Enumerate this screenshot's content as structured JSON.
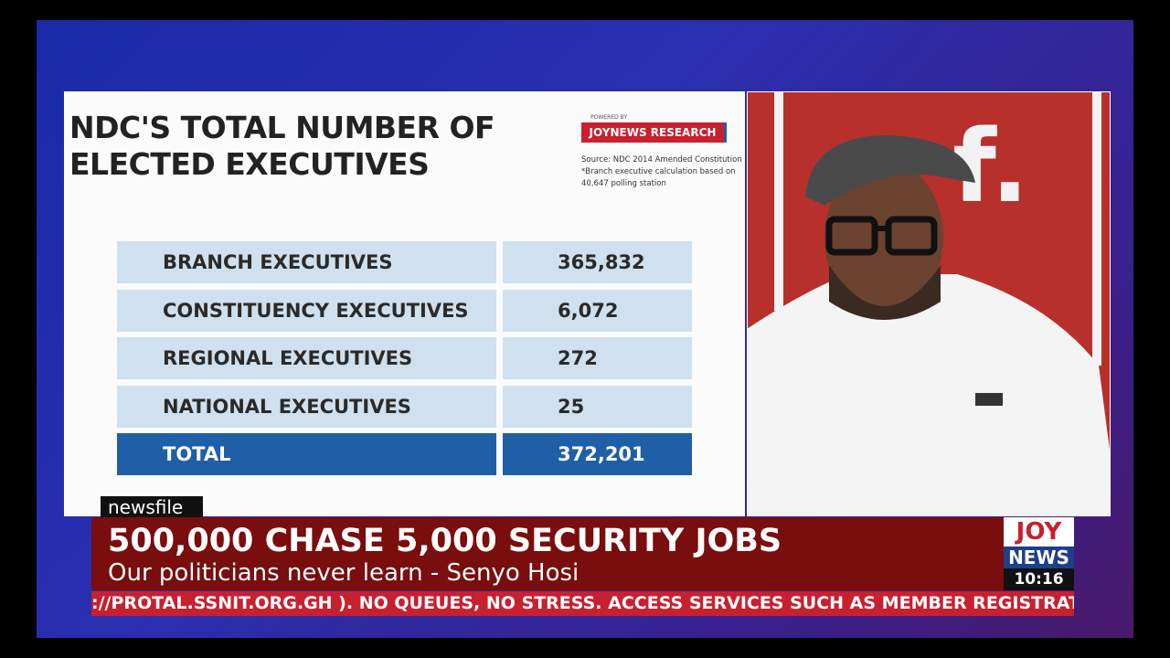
{
  "slide": {
    "title": "NDC'S TOTAL NUMBER OF ELECTED EXECUTIVES",
    "powered_by": "POWERED BY",
    "brand": "JOYNEWS RESEARCH",
    "source": [
      "Source: NDC 2014 Amended Constitution",
      "*Branch executive calculation based on",
      "40,647 polling station"
    ]
  },
  "table": {
    "rows": [
      [
        "BRANCH EXECUTIVES",
        "365,832"
      ],
      [
        "CONSTITUENCY EXECUTIVES",
        "6,072"
      ],
      [
        "REGIONAL EXECUTIVES",
        "272"
      ],
      [
        "NATIONAL EXECUTIVES",
        "25"
      ],
      [
        "TOTAL",
        "372,201"
      ]
    ]
  },
  "lower_third": {
    "show": "newsfile",
    "headline": "500,000 CHASE 5,000 SECURITY JOBS",
    "subheadline": "Our politicians never learn - Senyo Hosi",
    "ticker": "://PROTAL.SSNIT.ORG.GH ). NO QUEUES, NO STRESS. ACCESS SERVICES SUCH AS MEMBER REGISTRATION, UP"
  },
  "logo": {
    "joy": "JOY",
    "news": "NEWS",
    "time": "10:16"
  }
}
